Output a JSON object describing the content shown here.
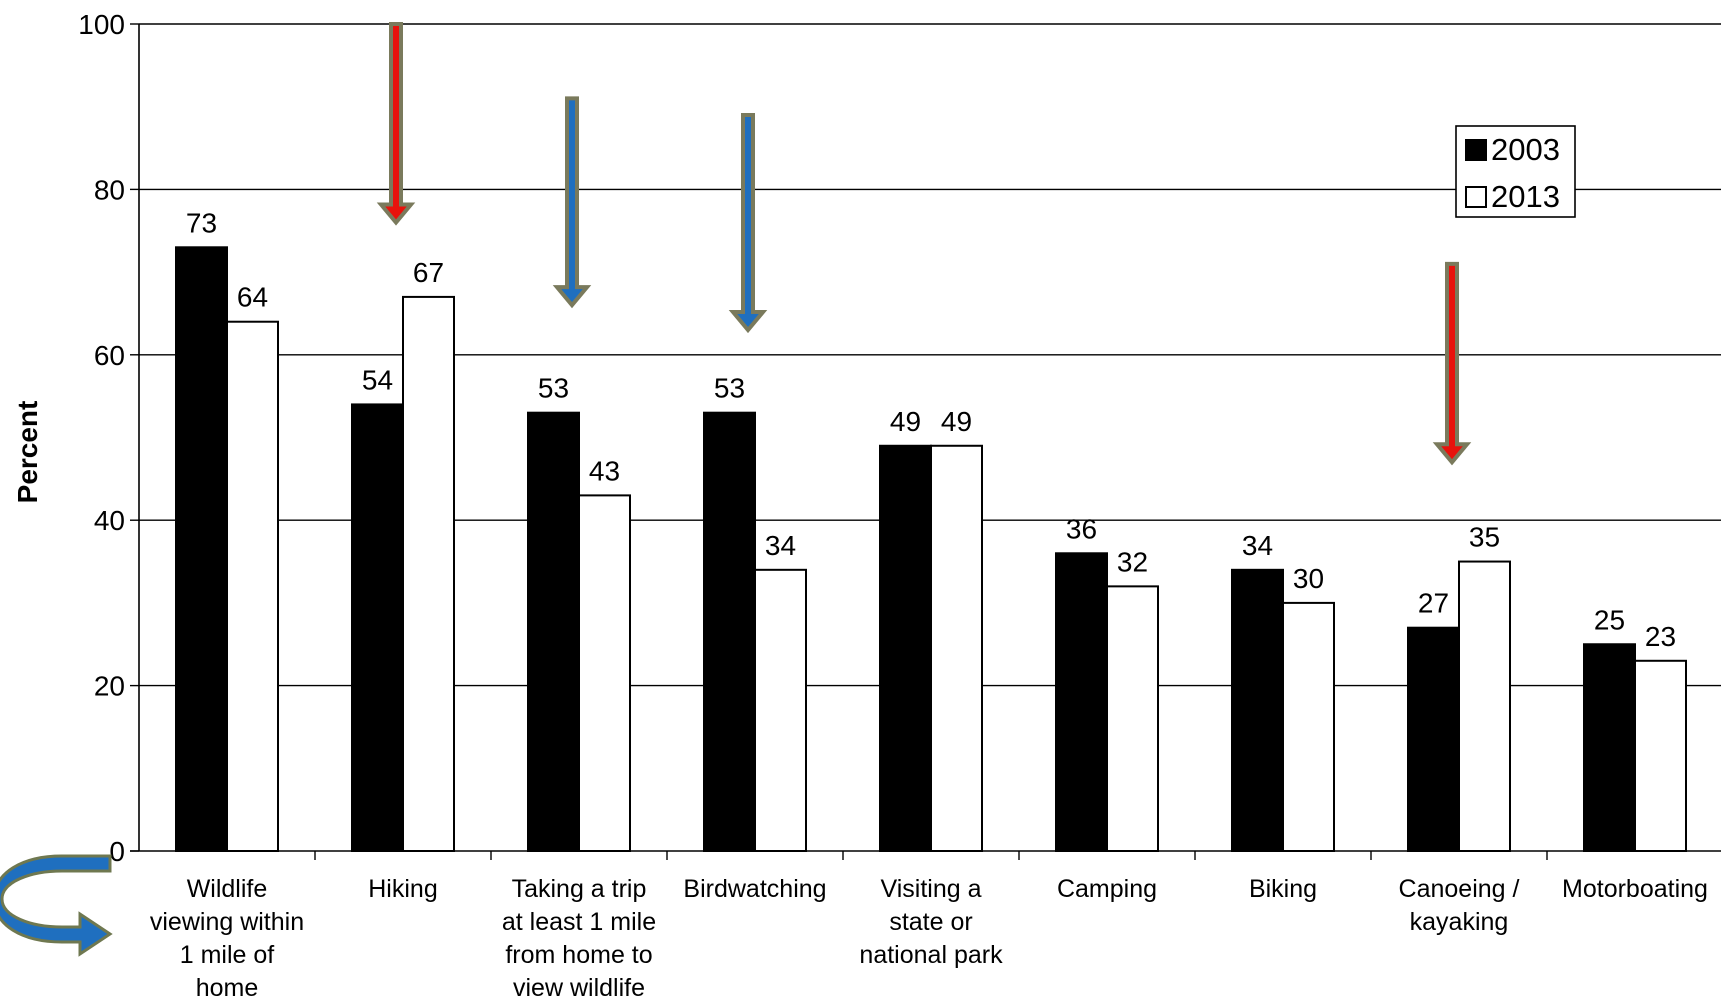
{
  "chart_data": {
    "type": "bar",
    "title": "",
    "xlabel": "",
    "ylabel": "Percent",
    "ylim": [
      0,
      100
    ],
    "yticks": [
      "0",
      "20",
      "40",
      "60",
      "80",
      "100"
    ],
    "grid": true,
    "legend_position": "top-right",
    "categories": [
      [
        "Wildlife",
        "viewing within",
        "1 mile of",
        "home"
      ],
      [
        "Hiking"
      ],
      [
        "Taking a trip",
        "at least 1 mile",
        "from home to",
        "view wildlife"
      ],
      [
        "Birdwatching"
      ],
      [
        "Visiting a",
        "state or",
        "national park"
      ],
      [
        "Camping"
      ],
      [
        "Biking"
      ],
      [
        "Canoeing /",
        "kayaking"
      ],
      [
        "Motorboating"
      ]
    ],
    "series": [
      {
        "name": "2003",
        "color": "#000000",
        "values": [
          73,
          54,
          53,
          53,
          49,
          36,
          34,
          27,
          25
        ]
      },
      {
        "name": "2013",
        "color": "#ffffff",
        "values": [
          64,
          67,
          43,
          34,
          49,
          32,
          30,
          35,
          23
        ]
      }
    ],
    "annotations": {
      "down_arrows": [
        {
          "category_index": 1,
          "color": "#e8120c",
          "from_value": 100,
          "to_value": 76
        },
        {
          "category_index": 2,
          "color": "#1f6fbf",
          "from_value": 91,
          "to_value": 66
        },
        {
          "category_index": 3,
          "color": "#1f6fbf",
          "from_value": 89,
          "to_value": 63
        },
        {
          "category_index": 7,
          "color": "#e8120c",
          "from_value": 71,
          "to_value": 47
        }
      ],
      "curved_arrow": {
        "icon": "curved-arrow-icon",
        "color": "#1f6fbf"
      }
    }
  }
}
